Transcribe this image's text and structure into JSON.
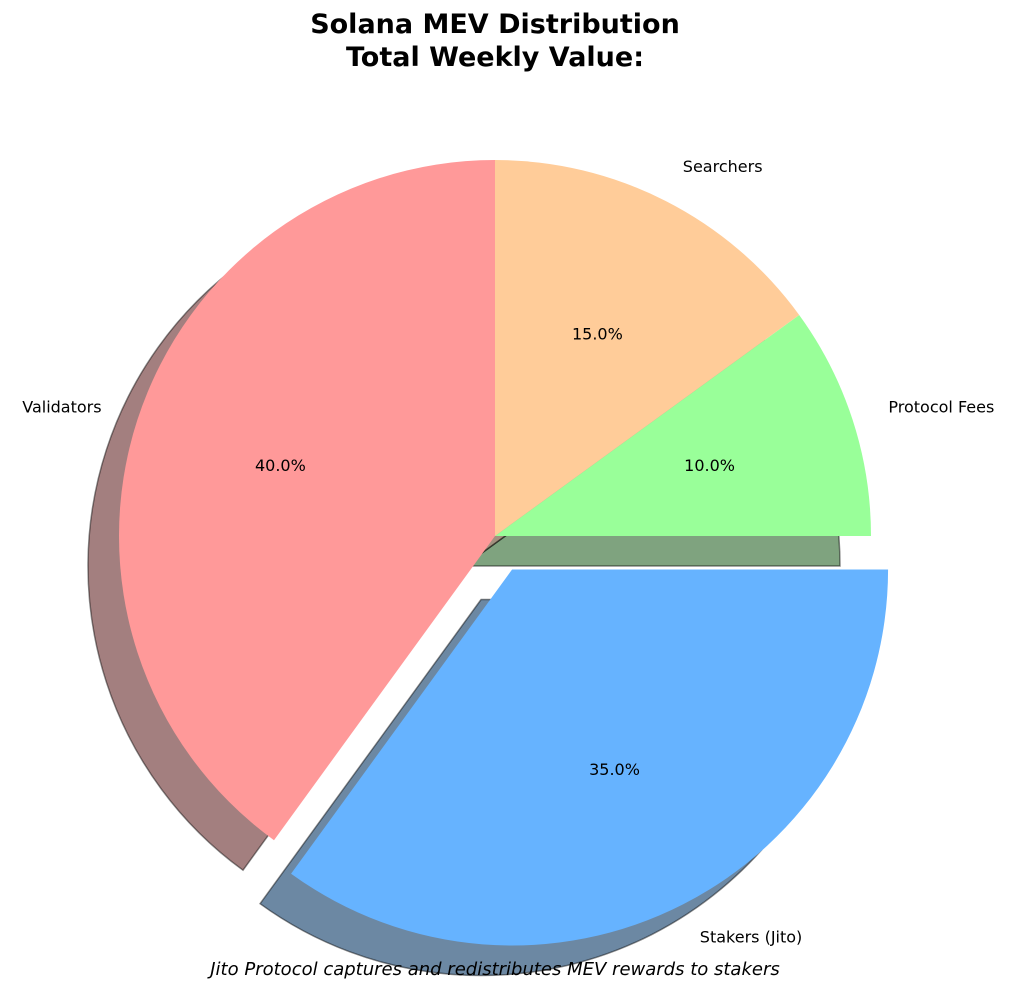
{
  "chart_data": {
    "type": "pie",
    "title_lines": [
      "Solana MEV Distribution",
      "Total Weekly Value:"
    ],
    "caption": "Jito Protocol captures and redistributes MEV rewards to stakers",
    "start_angle_deg": 90,
    "direction": "counterclockwise",
    "shadow": true,
    "slices": [
      {
        "label": "Validators",
        "value": 40,
        "pct_label": "40.0%",
        "color": "#ff9999",
        "explode": false
      },
      {
        "label": "Stakers (Jito)",
        "value": 35,
        "pct_label": "35.0%",
        "color": "#66b3ff",
        "explode": true
      },
      {
        "label": "Protocol Fees",
        "value": 10,
        "pct_label": "10.0%",
        "color": "#99ff99",
        "explode": false
      },
      {
        "label": "Searchers",
        "value": 15,
        "pct_label": "15.0%",
        "color": "#ffcc99",
        "explode": false
      }
    ]
  }
}
